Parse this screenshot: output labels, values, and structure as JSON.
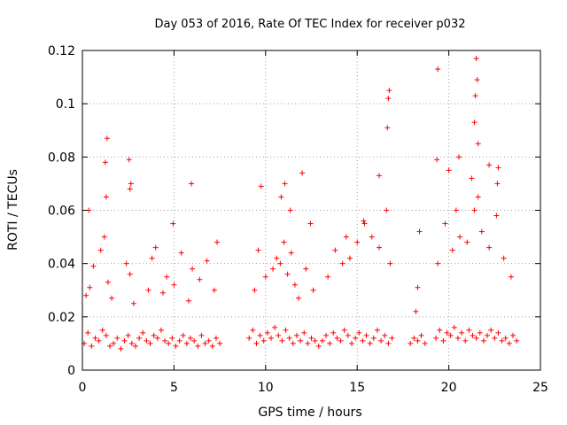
{
  "chart_data": {
    "type": "scatter",
    "title": "Day 053 of 2016, Rate Of TEC Index for receiver p032",
    "xlabel": "GPS time / hours",
    "ylabel": "ROTI / TECUs",
    "xlim": [
      0,
      25
    ],
    "ylim": [
      0,
      0.12
    ],
    "xticks": [
      0,
      5,
      10,
      15,
      20,
      25
    ],
    "yticks": [
      0,
      0.02,
      0.04,
      0.06,
      0.08,
      0.1,
      0.12
    ],
    "xtick_labels": [
      "0",
      "5",
      "10",
      "15",
      "20",
      "25"
    ],
    "ytick_labels": [
      "0",
      "0.02",
      "0.04",
      "0.06",
      "0.08",
      "0.1",
      "0.12"
    ],
    "grid": true,
    "marker": "+",
    "color": "#ff0000",
    "series": [
      {
        "x": [
          0.1,
          0.3,
          0.5,
          0.7,
          0.9,
          1.1,
          1.3,
          1.5,
          1.7,
          1.9,
          2.1,
          2.3,
          2.5,
          2.7,
          2.9,
          3.1,
          3.3,
          3.5,
          3.7,
          3.9,
          4.1,
          4.3,
          4.5,
          4.7,
          4.9,
          5.1,
          5.3,
          5.5,
          5.7,
          5.9,
          6.1,
          6.3,
          6.5,
          6.7,
          6.9,
          7.1,
          7.3,
          7.5,
          0.2,
          0.4,
          0.6,
          1.0,
          1.2,
          1.4,
          1.6,
          2.4,
          2.6,
          2.8,
          3.6,
          3.8,
          4.0,
          4.4,
          4.6,
          5.0,
          5.4,
          5.8,
          6.0,
          6.4,
          6.8,
          7.2,
          0.35,
          1.25,
          1.35,
          2.55,
          2.65,
          4.95,
          5.95,
          7.35,
          1.3,
          2.6,
          9.1,
          9.3,
          9.5,
          9.7,
          9.9,
          10.1,
          10.3,
          10.5,
          10.7,
          10.9,
          11.1,
          11.3,
          11.5,
          11.7,
          11.9,
          12.1,
          12.3,
          12.5,
          12.7,
          12.9,
          9.4,
          9.6,
          10.0,
          10.4,
          10.6,
          10.8,
          11.0,
          11.2,
          11.4,
          11.6,
          11.8,
          12.2,
          12.6,
          9.75,
          10.85,
          11.05,
          11.35,
          12.0,
          12.45,
          13.1,
          13.3,
          13.5,
          13.7,
          13.9,
          14.1,
          14.3,
          14.5,
          14.7,
          14.9,
          15.1,
          15.3,
          15.5,
          15.7,
          15.9,
          16.1,
          16.3,
          16.5,
          16.7,
          16.9,
          13.4,
          13.8,
          14.2,
          14.6,
          15.0,
          15.4,
          15.8,
          16.2,
          16.6,
          16.8,
          14.4,
          15.35,
          16.2,
          16.65,
          16.7,
          16.75,
          17.9,
          18.1,
          18.3,
          18.5,
          18.7,
          18.2,
          18.4,
          18.3,
          19.3,
          19.5,
          19.7,
          19.9,
          20.1,
          20.3,
          20.5,
          20.7,
          20.9,
          21.1,
          21.3,
          21.5,
          21.7,
          21.9,
          22.1,
          22.3,
          22.5,
          22.7,
          22.9,
          23.1,
          23.3,
          23.5,
          23.7,
          19.4,
          19.8,
          20.2,
          20.6,
          21.0,
          21.4,
          21.6,
          21.8,
          22.2,
          22.6,
          23.0,
          23.4,
          19.35,
          19.4,
          20.0,
          20.4,
          20.55,
          21.25,
          21.4,
          21.45,
          21.5,
          21.55,
          21.6,
          22.2,
          22.65,
          22.7
        ],
        "y": [
          0.01,
          0.014,
          0.009,
          0.012,
          0.011,
          0.015,
          0.013,
          0.009,
          0.01,
          0.012,
          0.008,
          0.011,
          0.013,
          0.01,
          0.009,
          0.012,
          0.014,
          0.011,
          0.01,
          0.013,
          0.012,
          0.015,
          0.011,
          0.01,
          0.012,
          0.009,
          0.011,
          0.013,
          0.01,
          0.012,
          0.011,
          0.009,
          0.013,
          0.01,
          0.011,
          0.009,
          0.012,
          0.01,
          0.028,
          0.031,
          0.039,
          0.045,
          0.05,
          0.033,
          0.027,
          0.04,
          0.036,
          0.025,
          0.03,
          0.042,
          0.046,
          0.029,
          0.035,
          0.032,
          0.044,
          0.026,
          0.038,
          0.034,
          0.041,
          0.03,
          0.06,
          0.078,
          0.087,
          0.079,
          0.07,
          0.055,
          0.07,
          0.048,
          0.065,
          0.068,
          0.012,
          0.015,
          0.01,
          0.013,
          0.011,
          0.014,
          0.012,
          0.016,
          0.013,
          0.011,
          0.015,
          0.012,
          0.01,
          0.013,
          0.011,
          0.014,
          0.01,
          0.012,
          0.011,
          0.009,
          0.03,
          0.045,
          0.035,
          0.038,
          0.042,
          0.04,
          0.048,
          0.036,
          0.044,
          0.032,
          0.027,
          0.038,
          0.03,
          0.069,
          0.065,
          0.07,
          0.06,
          0.074,
          0.055,
          0.011,
          0.013,
          0.01,
          0.014,
          0.012,
          0.011,
          0.015,
          0.013,
          0.01,
          0.012,
          0.014,
          0.011,
          0.013,
          0.01,
          0.012,
          0.015,
          0.011,
          0.013,
          0.01,
          0.012,
          0.035,
          0.045,
          0.04,
          0.042,
          0.048,
          0.055,
          0.05,
          0.046,
          0.06,
          0.04,
          0.05,
          0.056,
          0.073,
          0.091,
          0.102,
          0.105,
          0.01,
          0.012,
          0.011,
          0.013,
          0.01,
          0.022,
          0.052,
          0.031,
          0.012,
          0.015,
          0.011,
          0.014,
          0.013,
          0.016,
          0.012,
          0.014,
          0.011,
          0.015,
          0.013,
          0.012,
          0.014,
          0.011,
          0.013,
          0.015,
          0.012,
          0.014,
          0.011,
          0.012,
          0.01,
          0.013,
          0.011,
          0.04,
          0.055,
          0.045,
          0.05,
          0.048,
          0.06,
          0.065,
          0.052,
          0.046,
          0.058,
          0.042,
          0.035,
          0.079,
          0.113,
          0.075,
          0.06,
          0.08,
          0.072,
          0.093,
          0.103,
          0.117,
          0.109,
          0.085,
          0.077,
          0.07,
          0.076
        ]
      }
    ]
  }
}
